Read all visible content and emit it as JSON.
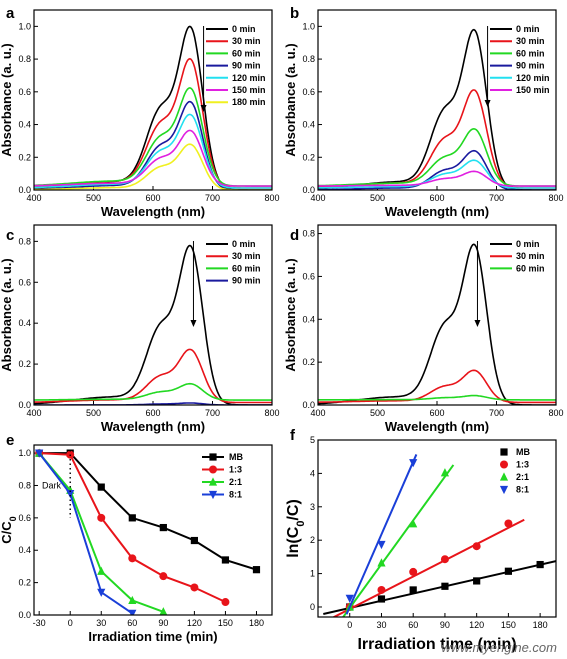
{
  "watermark": "www.myengine.com",
  "colors": {
    "black": "#000000",
    "red": "#e8141a",
    "green": "#22d822",
    "navy": "#1a1a9e",
    "cyan": "#22e0f0",
    "magenta": "#e020e0",
    "yellow": "#f0f020",
    "blue": "#1a3fd8"
  },
  "chart_data": [
    {
      "panel": "a",
      "type": "line",
      "peak_shape": "mb",
      "xlabel": "Wavelength (nm)",
      "ylabel": "Absorbance (a. u.)",
      "xlim": [
        400,
        800
      ],
      "ylim": [
        0,
        1.1
      ],
      "xticks": [
        400,
        500,
        600,
        700,
        800
      ],
      "yticks": [
        0.0,
        0.2,
        0.4,
        0.6,
        0.8,
        1.0
      ],
      "legend_position": "top-right",
      "series": [
        {
          "name": "0 min",
          "color": "black",
          "peak": 1.0
        },
        {
          "name": "30 min",
          "color": "red",
          "peak": 0.79
        },
        {
          "name": "60 min",
          "color": "green",
          "peak": 0.6
        },
        {
          "name": "90 min",
          "color": "navy",
          "peak": 0.54
        },
        {
          "name": "120 min",
          "color": "cyan",
          "peak": 0.45
        },
        {
          "name": "150 min",
          "color": "magenta",
          "peak": 0.34
        },
        {
          "name": "180 min",
          "color": "yellow",
          "peak": 0.28
        }
      ]
    },
    {
      "panel": "b",
      "type": "line",
      "peak_shape": "mb",
      "xlabel": "Wavelength (nm)",
      "ylabel": "Absorbance (a. u.)",
      "xlim": [
        400,
        800
      ],
      "ylim": [
        0,
        1.1
      ],
      "xticks": [
        400,
        500,
        600,
        700,
        800
      ],
      "yticks": [
        0.0,
        0.2,
        0.4,
        0.6,
        0.8,
        1.0
      ],
      "legend_position": "top-right",
      "series": [
        {
          "name": "0 min",
          "color": "black",
          "peak": 0.98
        },
        {
          "name": "30 min",
          "color": "red",
          "peak": 0.6
        },
        {
          "name": "60 min",
          "color": "green",
          "peak": 0.35
        },
        {
          "name": "90 min",
          "color": "navy",
          "peak": 0.24
        },
        {
          "name": "120 min",
          "color": "cyan",
          "peak": 0.17
        },
        {
          "name": "150 min",
          "color": "magenta",
          "peak": 0.09
        }
      ]
    },
    {
      "panel": "c",
      "type": "line",
      "peak_shape": "mb",
      "xlabel": "Wavelength (nm)",
      "ylabel": "Absorbance (a. u.)",
      "xlim": [
        400,
        800
      ],
      "ylim": [
        0,
        0.88
      ],
      "xticks": [
        400,
        500,
        600,
        700,
        800
      ],
      "yticks": [
        0.0,
        0.2,
        0.4,
        0.6,
        0.8
      ],
      "legend_position": "top-right",
      "series": [
        {
          "name": "0 min",
          "color": "black",
          "peak": 0.78
        },
        {
          "name": "30 min",
          "color": "red",
          "peak": 0.26
        },
        {
          "name": "60 min",
          "color": "green",
          "peak": 0.08
        },
        {
          "name": "90 min",
          "color": "navy",
          "peak": 0.01
        }
      ]
    },
    {
      "panel": "d",
      "type": "line",
      "peak_shape": "mb",
      "xlabel": "Wavelength (nm)",
      "ylabel": "Absorbance (a. u.)",
      "xlim": [
        400,
        800
      ],
      "ylim": [
        0,
        0.84
      ],
      "xticks": [
        400,
        500,
        600,
        700,
        800
      ],
      "yticks": [
        0.0,
        0.2,
        0.4,
        0.6,
        0.8
      ],
      "legend_position": "top-right",
      "series": [
        {
          "name": "0 min",
          "color": "black",
          "peak": 0.75
        },
        {
          "name": "30 min",
          "color": "red",
          "peak": 0.15
        },
        {
          "name": "60 min",
          "color": "green",
          "peak": 0.02
        }
      ]
    },
    {
      "panel": "e",
      "type": "line",
      "xlabel": "Irradiation time (min)",
      "ylabel": "C/C",
      "ylabel_sub": "0",
      "xlim": [
        -35,
        195
      ],
      "ylim": [
        0,
        1.05
      ],
      "xticks": [
        -30,
        0,
        30,
        60,
        90,
        120,
        150,
        180
      ],
      "yticks": [
        0.0,
        0.2,
        0.4,
        0.6,
        0.8,
        1.0
      ],
      "annotation": "Dark",
      "dark_marker_x": 0,
      "legend_position": "top-right",
      "series": [
        {
          "name": "MB",
          "color": "black",
          "marker": "square",
          "x": [
            -30,
            0,
            30,
            60,
            90,
            120,
            150,
            180
          ],
          "y": [
            1.0,
            1.0,
            0.79,
            0.6,
            0.54,
            0.46,
            0.34,
            0.28
          ]
        },
        {
          "name": "1:3",
          "color": "red",
          "marker": "circle",
          "x": [
            -30,
            0,
            30,
            60,
            90,
            120,
            150
          ],
          "y": [
            1.0,
            0.99,
            0.6,
            0.35,
            0.24,
            0.17,
            0.08
          ]
        },
        {
          "name": "2:1",
          "color": "green",
          "marker": "triangle-up",
          "x": [
            -30,
            0,
            30,
            60,
            90
          ],
          "y": [
            1.0,
            0.77,
            0.27,
            0.09,
            0.02
          ]
        },
        {
          "name": "8:1",
          "color": "blue",
          "marker": "triangle-down",
          "x": [
            -30,
            0,
            30,
            60
          ],
          "y": [
            1.0,
            0.75,
            0.14,
            0.01
          ]
        }
      ]
    },
    {
      "panel": "f",
      "type": "scatter",
      "xlabel": "Irradiation time (min)",
      "ylabel": "ln(C",
      "ylabel_sub": "0",
      "ylabel_tail": "/C)",
      "xlim": [
        -30,
        195
      ],
      "ylim": [
        -0.3,
        5
      ],
      "xticks": [
        0,
        30,
        60,
        90,
        120,
        150,
        180
      ],
      "yticks": [
        0,
        1,
        2,
        3,
        4,
        5
      ],
      "legend_position": "top-right",
      "series": [
        {
          "name": "MB",
          "color": "black",
          "marker": "square",
          "x": [
            0,
            30,
            60,
            90,
            120,
            150,
            180
          ],
          "y": [
            0.0,
            0.24,
            0.51,
            0.62,
            0.78,
            1.07,
            1.27
          ],
          "fit": {
            "slope": 0.0072,
            "intercept": -0.03,
            "x": [
              -25,
              195
            ]
          }
        },
        {
          "name": "1:3",
          "color": "red",
          "marker": "circle",
          "x": [
            0,
            30,
            60,
            90,
            120,
            150
          ],
          "y": [
            0.0,
            0.51,
            1.05,
            1.43,
            1.82,
            2.5
          ],
          "fit": {
            "slope": 0.0162,
            "intercept": -0.06,
            "x": [
              -20,
              165
            ]
          }
        },
        {
          "name": "2:1",
          "color": "green",
          "marker": "triangle-up",
          "x": [
            0,
            30,
            60,
            90
          ],
          "y": [
            0.0,
            1.32,
            2.49,
            4.02
          ],
          "fit": {
            "slope": 0.0437,
            "intercept": -0.03,
            "x": [
              -10,
              98
            ]
          }
        },
        {
          "name": "8:1",
          "color": "blue",
          "marker": "triangle-down",
          "x": [
            0,
            30,
            60
          ],
          "y": [
            0.26,
            1.87,
            4.32
          ],
          "fit": {
            "slope": 0.0725,
            "intercept": 0.0,
            "x": [
              -3,
              63
            ]
          }
        }
      ]
    }
  ]
}
